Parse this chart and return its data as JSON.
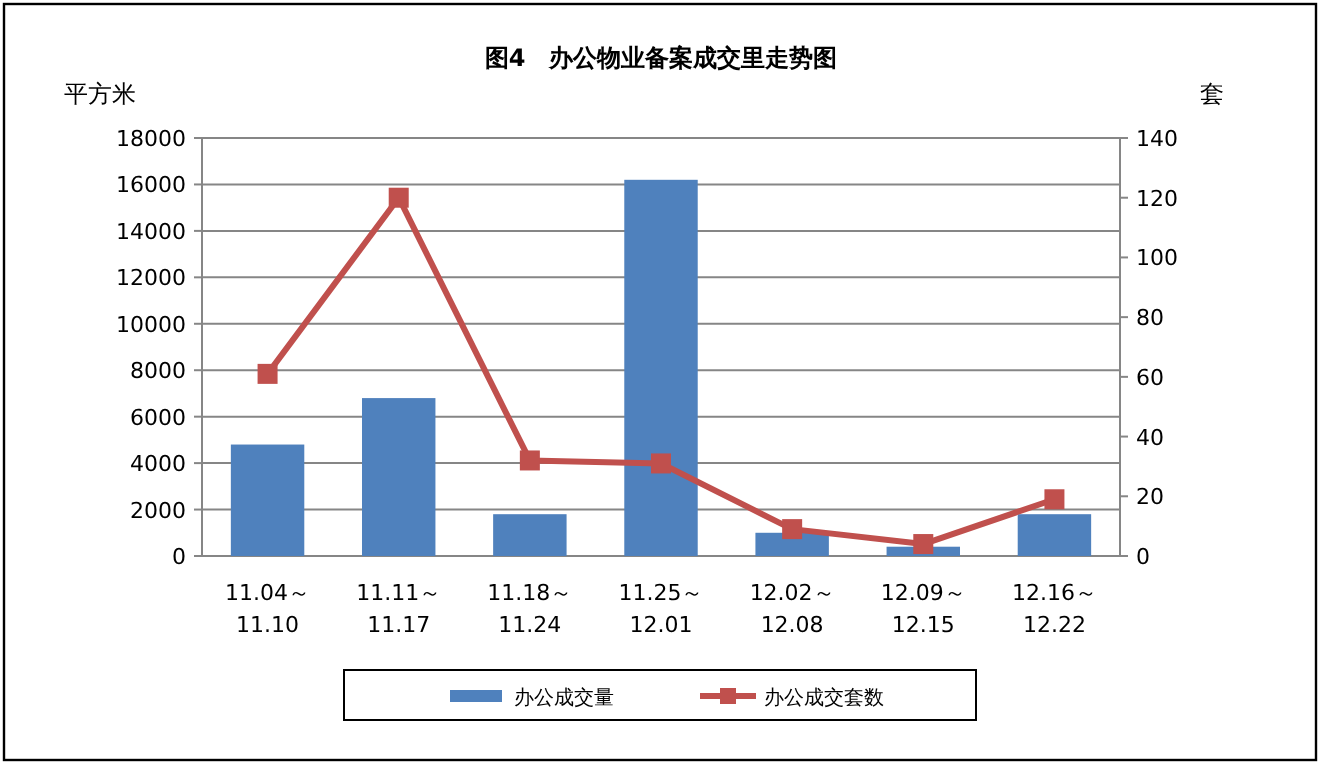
{
  "chart_data": {
    "type": "bar",
    "title": "图4　办公物业备案成交里走势图",
    "ylabel": "平方米",
    "y2label": "套",
    "categories": [
      "11.04～\n11.10",
      "11.11～\n11.17",
      "11.18～\n11.24",
      "11.25～\n12.01",
      "12.02～\n12.08",
      "12.09～\n12.15",
      "12.16～\n12.22"
    ],
    "series": [
      {
        "name": "办公成交量",
        "color": "#4f81bd",
        "values": [
          4800,
          6800,
          1800,
          16200,
          1000,
          400,
          1800
        ]
      },
      {
        "name": "办公成交套数",
        "type": "line",
        "axis": "y2",
        "color": "#c0504d",
        "marker": "square",
        "values": [
          61,
          120,
          32,
          31,
          9,
          4,
          19
        ]
      }
    ],
    "ylim": [
      0,
      18000
    ],
    "yticks": [
      0,
      2000,
      4000,
      6000,
      8000,
      10000,
      12000,
      14000,
      16000,
      18000
    ],
    "y2lim": [
      0,
      140
    ],
    "y2ticks": [
      0,
      20,
      40,
      60,
      80,
      100,
      120,
      140
    ],
    "grid": "y",
    "legend": "bottom"
  }
}
